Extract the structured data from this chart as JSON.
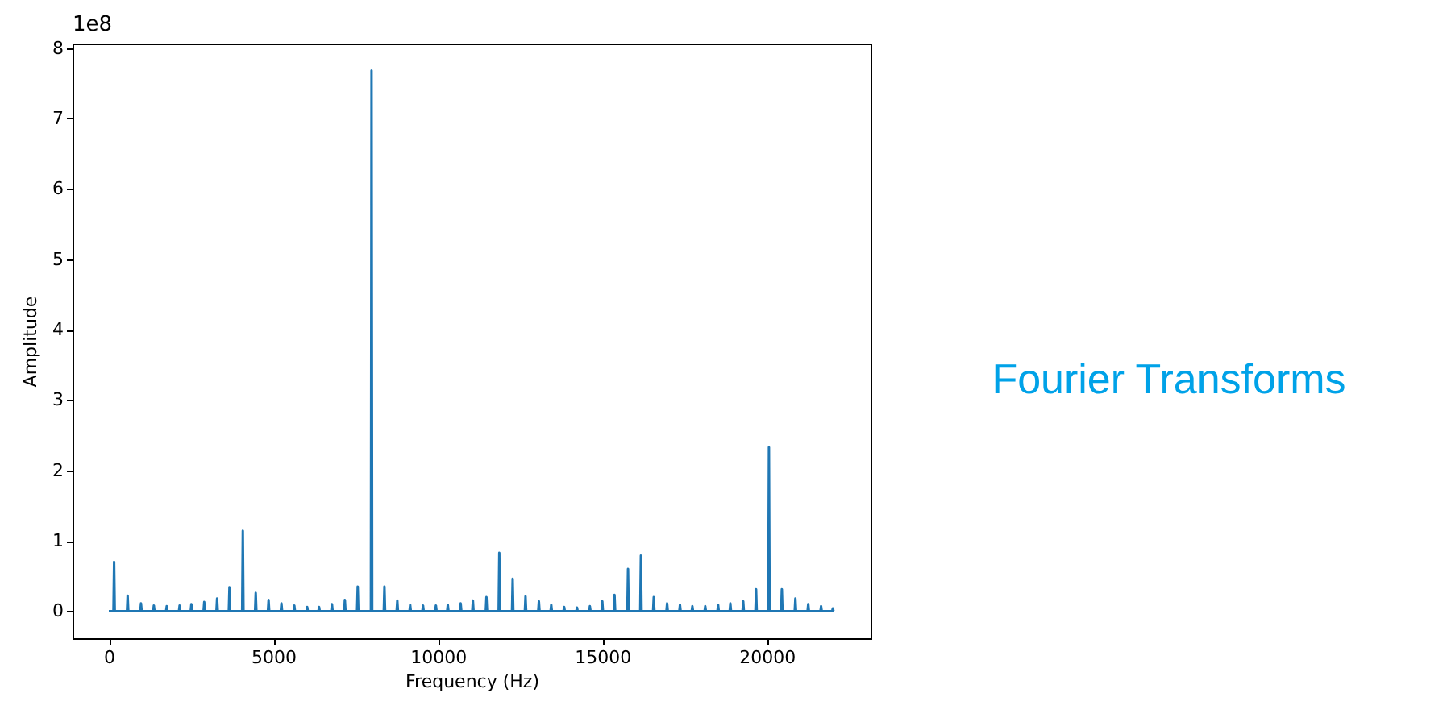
{
  "chart_data": {
    "type": "line",
    "xlabel": "Frequency (Hz)",
    "ylabel": "Amplitude",
    "annotations": [
      "1e8",
      "Fourier Transforms"
    ],
    "xlim": [
      -1102.5,
      23152.5
    ],
    "xticks": [
      0,
      5000,
      10000,
      15000,
      20000
    ],
    "ylim": [
      -0.384,
      8.064
    ],
    "yticks": [
      0,
      1,
      2,
      3,
      4,
      5,
      6,
      7,
      8
    ],
    "grid": false,
    "series": [
      {
        "color": "#1f77b4",
        "x": [
          0,
          141,
          161,
          181,
          552,
          572,
          592,
          958,
          978,
          998,
          1349,
          1369,
          1389,
          1740,
          1760,
          1780,
          2132,
          2152,
          2172,
          2489,
          2509,
          2529,
          2880,
          2900,
          2920,
          3271,
          3291,
          3311,
          3647,
          3667,
          3687,
          4053,
          4073,
          4093,
          4445,
          4465,
          4485,
          4836,
          4856,
          4876,
          5227,
          5247,
          5267,
          5618,
          5638,
          5658,
          6009,
          6029,
          6049,
          6371,
          6391,
          6411,
          6762,
          6782,
          6802,
          7154,
          7174,
          7194,
          7545,
          7565,
          7585,
          7965,
          7985,
          8005,
          8357,
          8377,
          8397,
          8748,
          8768,
          8788,
          9139,
          9159,
          9179,
          9530,
          9550,
          9570,
          9921,
          9941,
          9961,
          10283,
          10303,
          10323,
          10674,
          10694,
          10714,
          11046,
          11066,
          11086,
          11457,
          11477,
          11497,
          11848,
          11868,
          11888,
          12254,
          12274,
          12294,
          12645,
          12665,
          12685,
          13051,
          13071,
          13091,
          13427,
          13447,
          13467,
          13819,
          13839,
          13859,
          14210,
          14230,
          14250,
          14601,
          14621,
          14641,
          14978,
          14998,
          15018,
          15350,
          15370,
          15390,
          15760,
          15780,
          15800,
          16151,
          16171,
          16191,
          16542,
          16562,
          16582,
          16948,
          16968,
          16988,
          17339,
          17359,
          17379,
          17716,
          17736,
          17756,
          18107,
          18127,
          18147,
          18498,
          18518,
          18538,
          18870,
          18890,
          18910,
          19261,
          19281,
          19301,
          19652,
          19672,
          19692,
          20043,
          20063,
          20083,
          20435,
          20455,
          20475,
          20846,
          20866,
          20886,
          21237,
          21257,
          21277,
          21628,
          21648,
          21668,
          21985,
          22005,
          22025,
          22050
        ],
        "values": [
          0,
          0,
          0.7,
          0,
          0,
          0.22,
          0,
          0,
          0.11,
          0,
          0,
          0.08,
          0,
          0,
          0.07,
          0,
          0,
          0.08,
          0,
          0,
          0.1,
          0,
          0,
          0.13,
          0,
          0,
          0.18,
          0,
          0,
          0.34,
          0,
          0,
          1.14,
          0,
          0,
          0.26,
          0,
          0,
          0.16,
          0,
          0,
          0.11,
          0,
          0,
          0.08,
          0,
          0,
          0.06,
          0,
          0,
          0.06,
          0,
          0,
          0.1,
          0,
          0,
          0.16,
          0,
          0,
          0.35,
          0,
          0,
          7.68,
          0,
          0,
          0.35,
          0,
          0,
          0.15,
          0,
          0,
          0.09,
          0,
          0,
          0.08,
          0,
          0,
          0.08,
          0,
          0,
          0.09,
          0,
          0,
          0.11,
          0,
          0,
          0.15,
          0,
          0,
          0.2,
          0,
          0,
          0.83,
          0,
          0,
          0.46,
          0,
          0,
          0.21,
          0,
          0,
          0.14,
          0,
          0,
          0.09,
          0,
          0,
          0.06,
          0,
          0,
          0.05,
          0,
          0,
          0.07,
          0,
          0,
          0.14,
          0,
          0,
          0.23,
          0,
          0,
          0.6,
          0,
          0,
          0.79,
          0,
          0,
          0.2,
          0,
          0,
          0.11,
          0,
          0,
          0.09,
          0,
          0,
          0.07,
          0,
          0,
          0.07,
          0,
          0,
          0.09,
          0,
          0,
          0.11,
          0,
          0,
          0.14,
          0,
          0,
          0.31,
          0,
          0,
          2.33,
          0,
          0,
          0.31,
          0,
          0,
          0.18,
          0,
          0,
          0.1,
          0,
          0,
          0.07,
          0,
          0,
          0.04,
          0,
          0
        ]
      }
    ]
  }
}
